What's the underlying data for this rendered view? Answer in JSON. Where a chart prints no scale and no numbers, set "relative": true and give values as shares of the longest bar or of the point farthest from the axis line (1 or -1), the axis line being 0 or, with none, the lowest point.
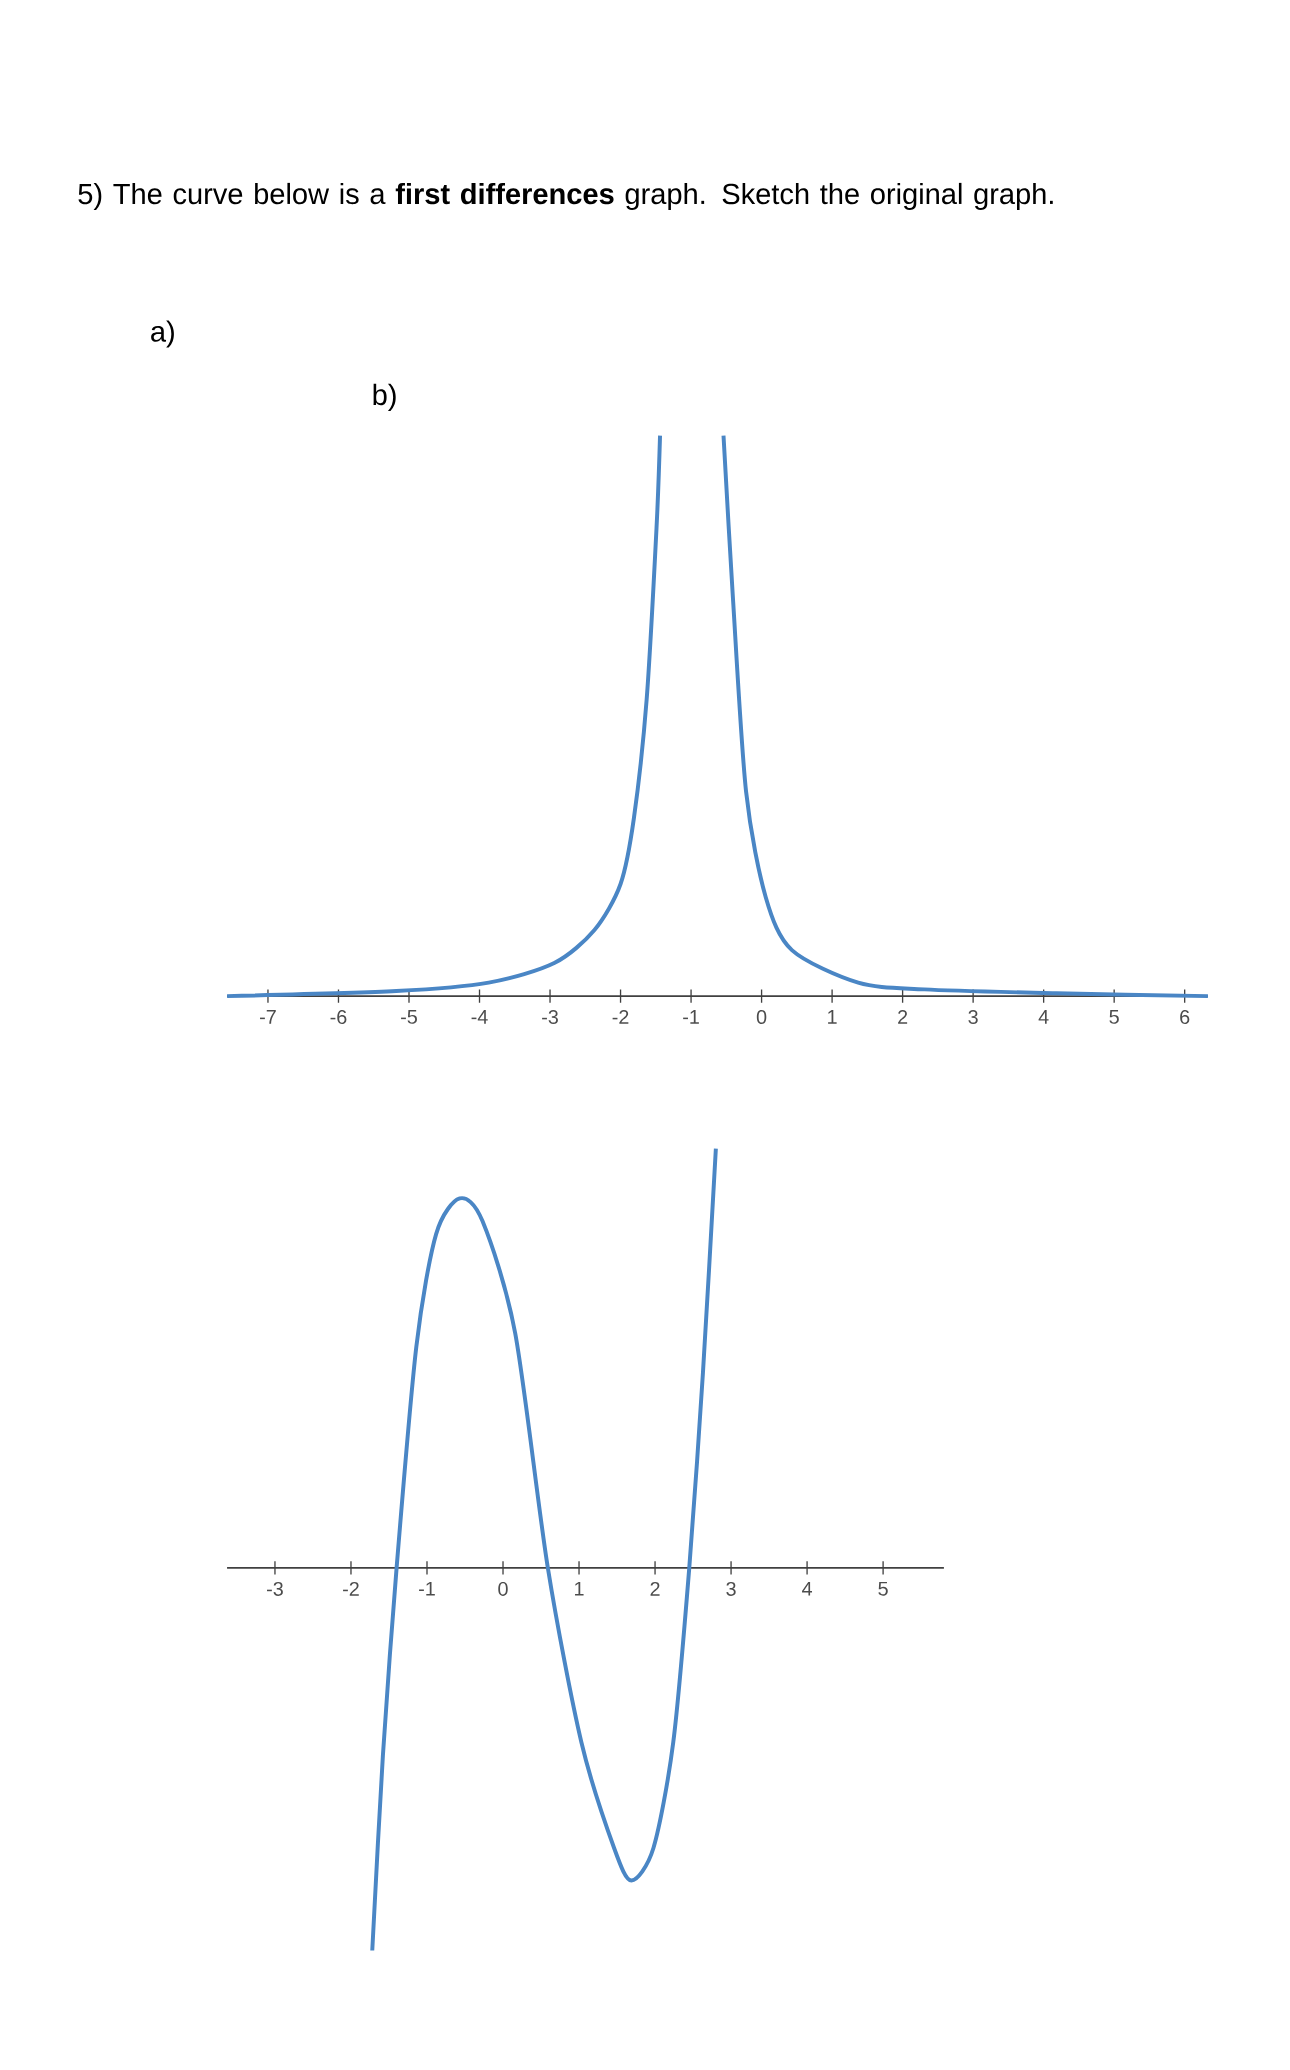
{
  "chart_data": [
    {
      "type": "line",
      "title": "5) The curve below is a **first differences** graph. Sketch the original graph.",
      "subtitle": "a)",
      "annotations": [
        "b)"
      ],
      "relative": true,
      "color": "#4a86c5",
      "xlim": [
        -7.58,
        6.33
      ],
      "xticks": [
        -7,
        -6,
        -5,
        -4,
        -3,
        -2,
        -1,
        0,
        1,
        2,
        3,
        4,
        5,
        6
      ],
      "x": [
        -7.58,
        -5.18,
        -3.87,
        -2.94,
        -2.37,
        -2.0,
        -1.81,
        -1.63,
        -1.49,
        -1.44,
        -1.0,
        -0.54,
        -0.41,
        -0.22,
        0.06,
        0.43,
        1.37,
        2.31,
        4.18,
        6.33
      ],
      "values": [
        0.0,
        0.009,
        0.024,
        0.059,
        0.118,
        0.2,
        0.318,
        0.529,
        0.835,
        1.0,
        null,
        1.0,
        0.718,
        0.365,
        0.176,
        0.082,
        0.024,
        0.012,
        0.005,
        0.0
      ]
    },
    {
      "type": "line",
      "relative": true,
      "color": "#4a86c5",
      "xlim": [
        -3.63,
        5.8
      ],
      "xticks": [
        -3,
        -2,
        -1,
        0,
        1,
        2,
        3,
        4,
        5
      ],
      "x": [
        -1.72,
        -1.58,
        -1.4,
        -1.14,
        -0.88,
        -0.57,
        -0.27,
        0.16,
        0.59,
        1.03,
        1.46,
        1.69,
        1.98,
        2.24,
        2.45,
        2.63,
        2.8
      ],
      "values": [
        -0.912,
        -0.447,
        0,
        0.528,
        0.796,
        0.881,
        0.827,
        0.56,
        0,
        -0.415,
        -0.667,
        -0.745,
        -0.667,
        -0.415,
        0,
        0.465,
        1.0
      ]
    }
  ]
}
